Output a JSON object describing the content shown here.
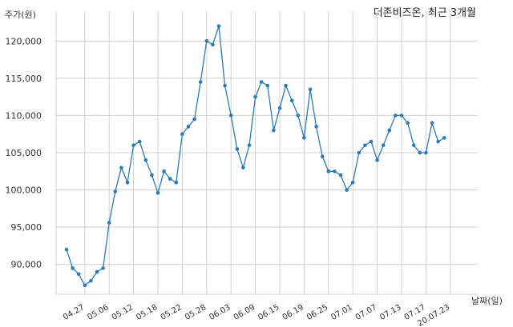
{
  "chart_data": {
    "type": "line",
    "title": "더존비즈온, 최근 3개월",
    "ylabel": "주가(원)",
    "xlabel": "날짜(일)",
    "ylim": [
      86000,
      124000
    ],
    "yticks": [
      90000,
      95000,
      100000,
      105000,
      110000,
      115000,
      120000
    ],
    "ytick_labels": [
      "90,000",
      "95,000",
      "100,000",
      "105,000",
      "110,000",
      "115,000",
      "120,000"
    ],
    "xtick_labels": [
      "04.27",
      "05.06",
      "05.12",
      "05.18",
      "05.22",
      "05.28",
      "06.03",
      "06.09",
      "06.15",
      "06.19",
      "06.25",
      "07.01",
      "07.07",
      "07.13",
      "07.17",
      "20.07.23"
    ],
    "xtick_index": [
      3,
      7,
      11,
      15,
      19,
      23,
      27,
      31,
      35,
      39,
      43,
      47,
      51,
      55,
      59,
      63
    ],
    "grid": true,
    "color": "#2b7bb9",
    "values": [
      92000,
      89500,
      88700,
      87200,
      87800,
      89000,
      89500,
      95600,
      99800,
      103000,
      101000,
      106000,
      106500,
      104000,
      102000,
      99600,
      102500,
      101500,
      101000,
      107500,
      108500,
      109500,
      114500,
      120000,
      119500,
      122000,
      114000,
      110000,
      105500,
      103000,
      106000,
      112500,
      114500,
      114000,
      108000,
      111000,
      114000,
      112000,
      110000,
      107000,
      113500,
      108500,
      104500,
      102500,
      102500,
      102000,
      100000,
      101000,
      105000,
      106000,
      106500,
      104000,
      106000,
      108000,
      110000,
      110000,
      109000,
      106000,
      105000,
      105000,
      109000,
      106500,
      107000
    ]
  }
}
